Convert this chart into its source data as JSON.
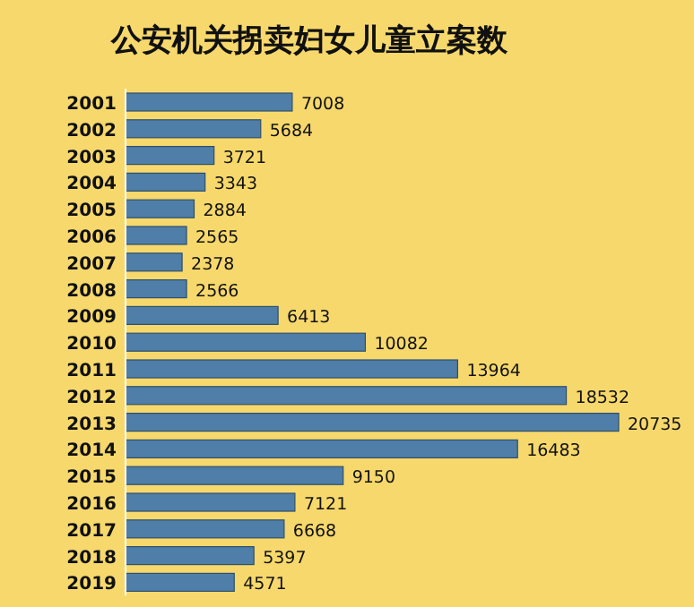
{
  "chart_data": {
    "type": "bar",
    "orientation": "horizontal",
    "title": "公安机关拐卖妇女儿童立案数",
    "categories": [
      "2001",
      "2002",
      "2003",
      "2004",
      "2005",
      "2006",
      "2007",
      "2008",
      "2009",
      "2010",
      "2011",
      "2012",
      "2013",
      "2014",
      "2015",
      "2016",
      "2017",
      "2018",
      "2019"
    ],
    "values": [
      7008,
      5684,
      3721,
      3343,
      2884,
      2565,
      2378,
      2566,
      6413,
      10082,
      13964,
      18532,
      20735,
      16483,
      9150,
      7121,
      6668,
      5397,
      4571
    ],
    "color": "#4f7ea8",
    "data_labels": true
  }
}
